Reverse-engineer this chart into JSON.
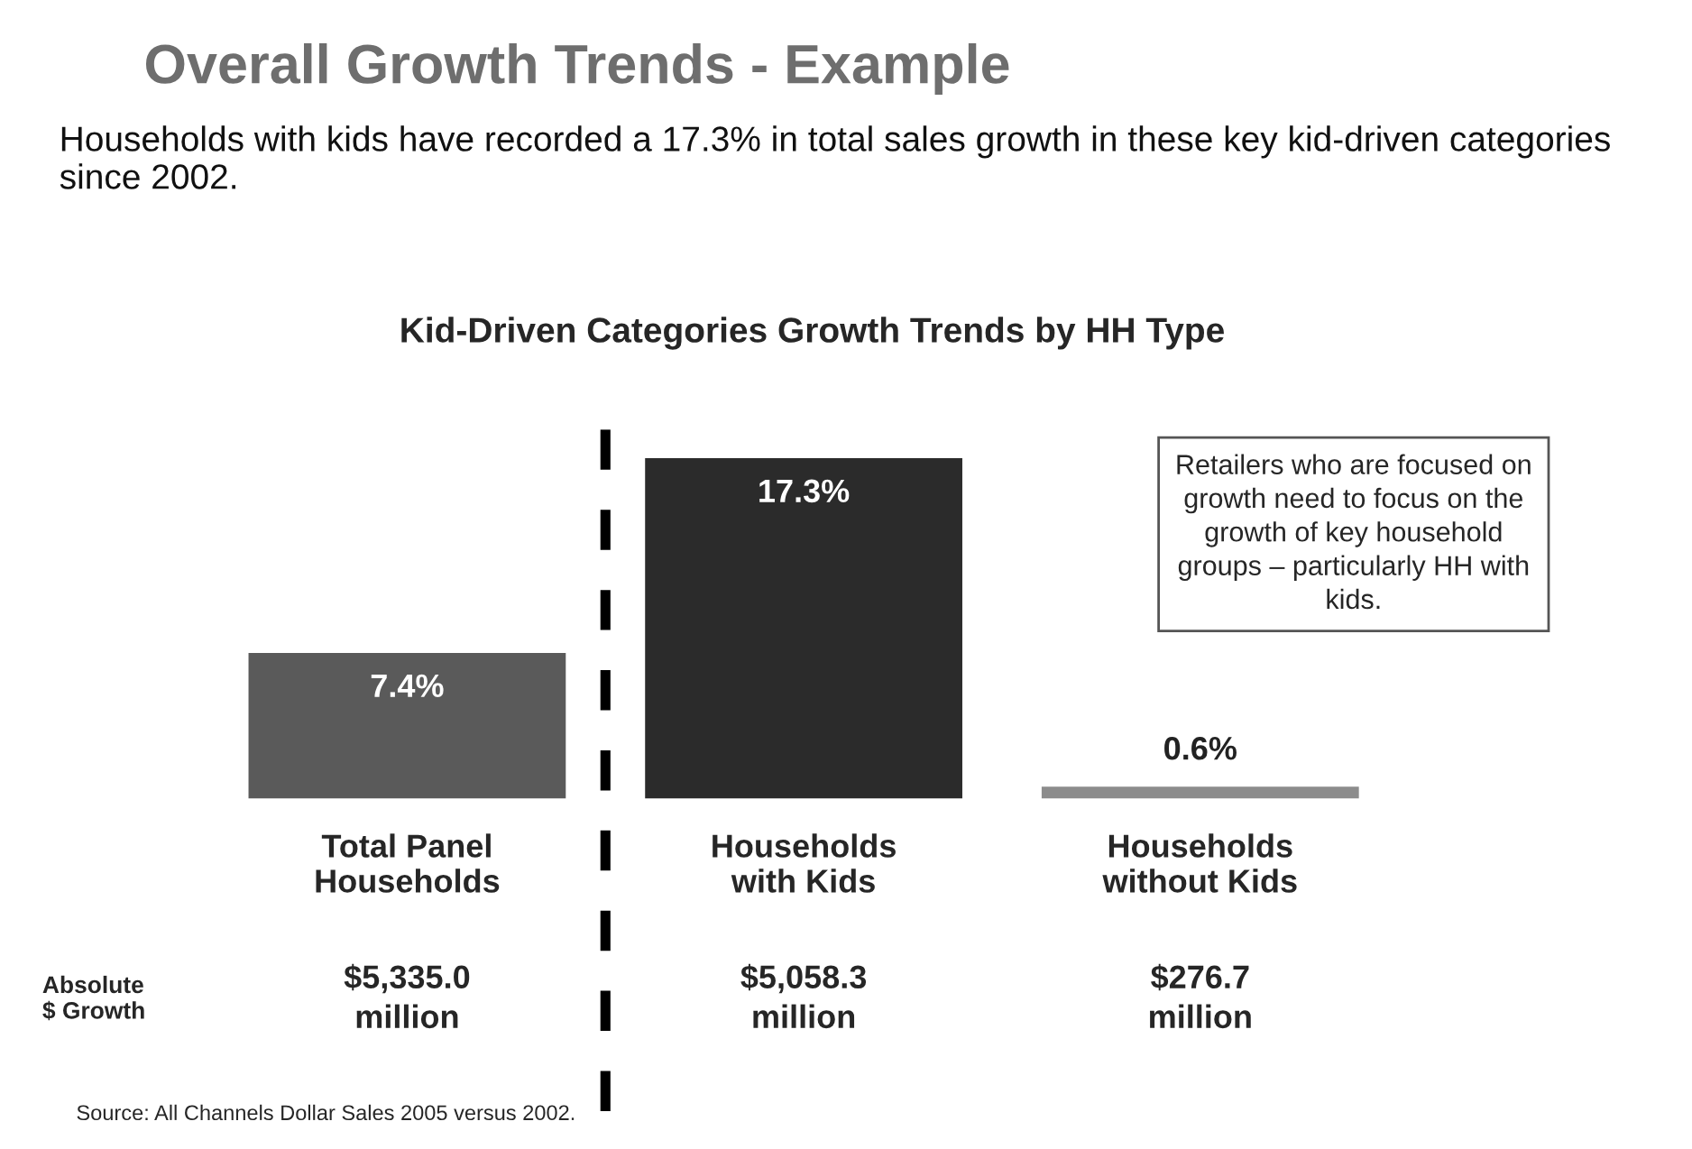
{
  "chart_data": {
    "type": "bar",
    "title": "Overall Growth Trends - Example",
    "subtitle": "Households with kids have recorded a 17.3% in total sales growth in these key kid-driven categories since 2002.",
    "categories": [
      "Total Panel\nHouseholds",
      "Households\nwith Kids",
      "Households\nwithout Kids"
    ],
    "values": [
      7.4,
      17.3,
      0.6
    ],
    "colors": [
      "#5a5a5a",
      "#2b2b2b",
      "#8c8c8c"
    ],
    "value_labels": [
      "7.4%",
      "17.3%",
      "0.6%"
    ],
    "annotations": [
      "Kid-Driven Categories Growth Trends by HH Type",
      "Retailers who are focused on\ngrowth need to focus on the\ngrowth of key household\ngroups – particularly HH with\nkids.",
      "Absolute\n$ Growth",
      "$5,335.0\nmillion",
      "$5,058.3\nmillion",
      "$276.7\nmillion",
      "Source: All Channels Dollar Sales 2005 versus 2002."
    ],
    "grid": false
  }
}
